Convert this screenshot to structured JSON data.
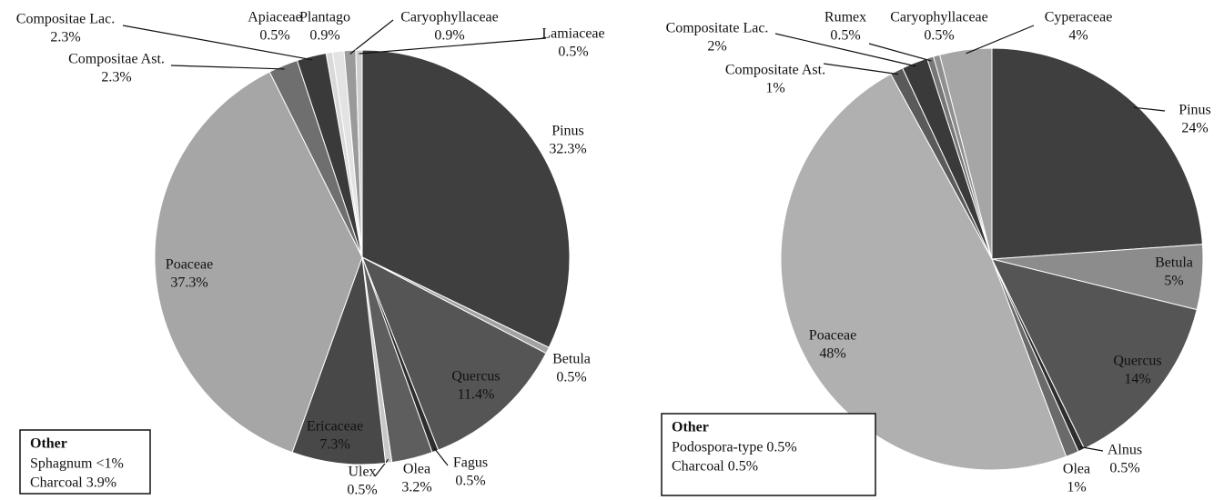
{
  "chart_data": [
    {
      "type": "pie",
      "categories": [
        "Pinus",
        "Betula",
        "Quercus",
        "Fagus",
        "Olea",
        "Ulex",
        "Ericaceae",
        "Poaceae",
        "Compositae Ast.",
        "Compositae Lac.",
        "Apiaceae",
        "Plantago",
        "Caryophyllaceae",
        "Lamiaceae"
      ],
      "values": [
        32.3,
        0.5,
        11.4,
        0.5,
        3.2,
        0.5,
        7.3,
        37.3,
        2.3,
        2.3,
        0.5,
        0.9,
        0.9,
        0.5
      ],
      "value_labels": [
        "32.3%",
        "0.5%",
        "11.4%",
        "0.5%",
        "3.2%",
        "0.5%",
        "7.3%",
        "37.3%",
        "2.3%",
        "2.3%",
        "0.5%",
        "0.9%",
        "0.9%",
        "0.5%"
      ],
      "colors": [
        "#3f3f3f",
        "#a3a3a3",
        "#555555",
        "#2e2e2e",
        "#5e5e5e",
        "#c8c8c8",
        "#484848",
        "#a6a6a6",
        "#6f6f6f",
        "#3a3a3a",
        "#d9d9d9",
        "#e3e3e3",
        "#9a9a9a",
        "#cfcfcf"
      ],
      "other": {
        "title": "Other",
        "lines": [
          "Sphagnum <1%",
          "Charcoal  3.9%"
        ]
      }
    },
    {
      "type": "pie",
      "categories": [
        "Pinus",
        "Betula",
        "Quercus",
        "Alnus",
        "Olea",
        "Poaceae",
        "Compositate Ast.",
        "Compositate Lac.",
        "Rumex",
        "Caryophyllaceae",
        "Cyperaceae"
      ],
      "values": [
        24,
        5,
        14,
        0.5,
        1,
        48,
        1,
        2,
        0.5,
        0.5,
        4
      ],
      "value_labels": [
        "24%",
        "5%",
        "14%",
        "0.5%",
        "1%",
        "48%",
        "1%",
        "2%",
        "0.5%",
        "0.5%",
        "4%"
      ],
      "colors": [
        "#3f3f3f",
        "#8c8c8c",
        "#555555",
        "#2e2e2e",
        "#6a6a6a",
        "#b0b0b0",
        "#5a5a5a",
        "#3a3a3a",
        "#777777",
        "#8f8f8f",
        "#a6a6a6"
      ],
      "other": {
        "title": "Other",
        "lines": [
          "Podospora-type 0.5%",
          "Charcoal 0.5%"
        ]
      }
    }
  ]
}
